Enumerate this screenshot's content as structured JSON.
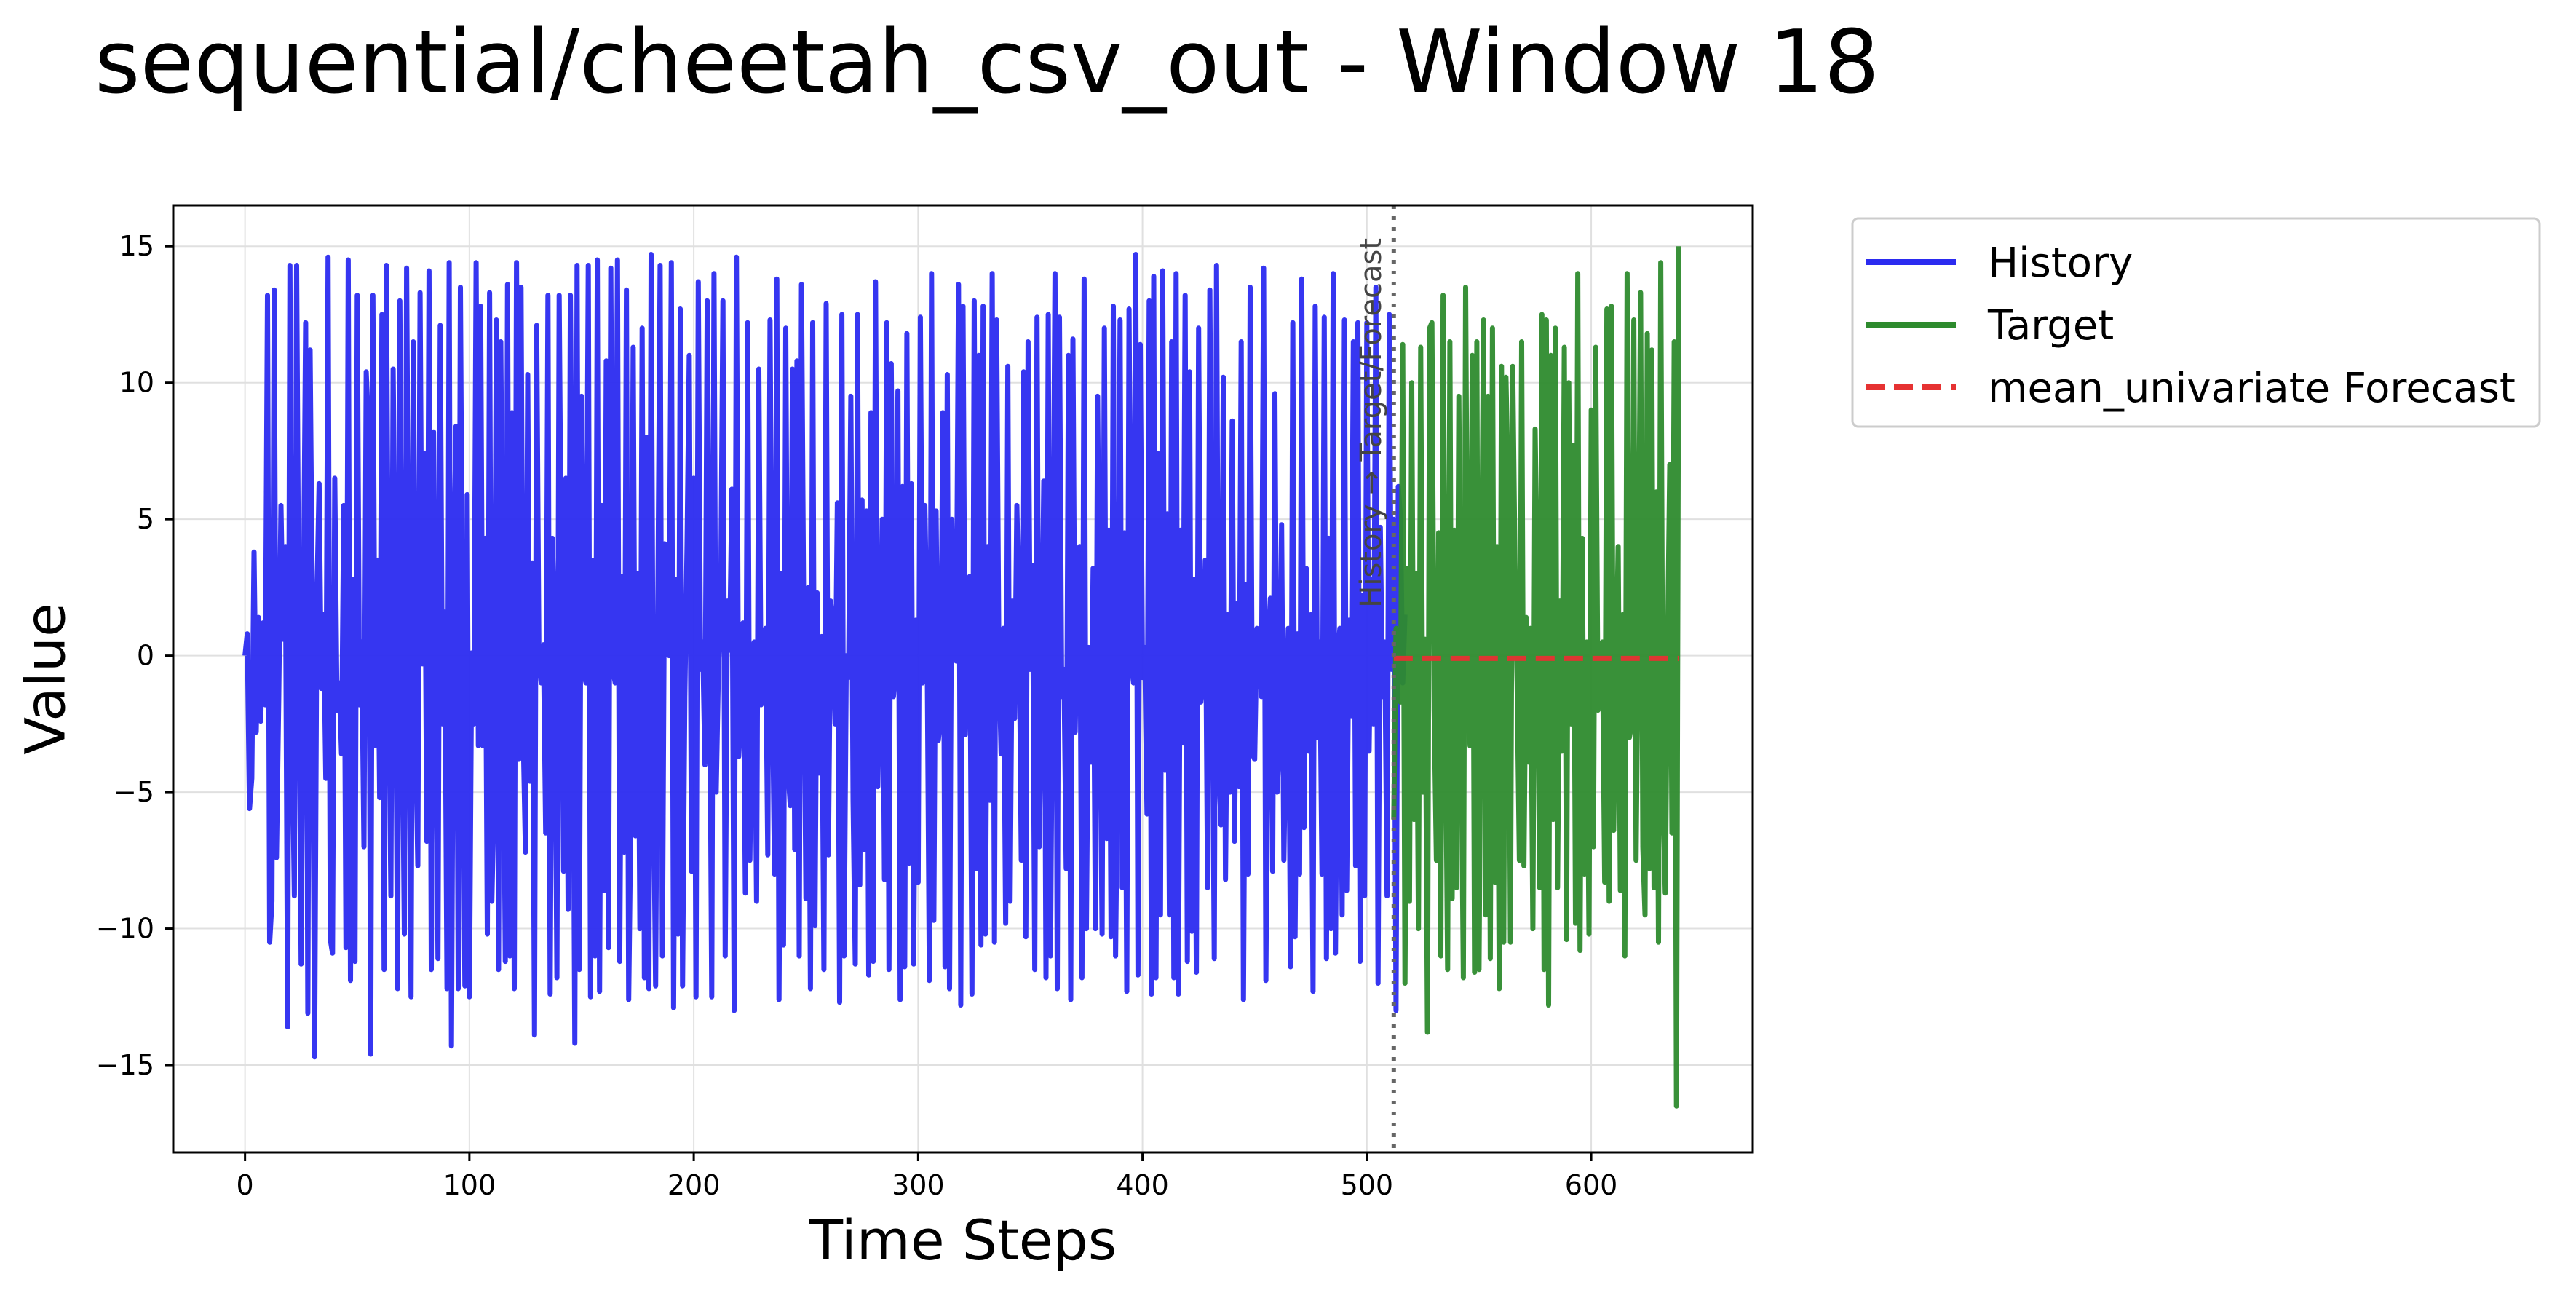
{
  "chart_data": {
    "type": "line",
    "title": "sequential/cheetah_csv_out - Window 18",
    "xlabel": "Time Steps",
    "ylabel": "Value",
    "xlim": [
      -32,
      672
    ],
    "ylim": [
      -18.2,
      16.5
    ],
    "xticks": [
      0,
      100,
      200,
      300,
      400,
      500,
      600
    ],
    "yticks": [
      -15,
      -10,
      -5,
      0,
      5,
      10,
      15
    ],
    "grid": true,
    "legend_position": "outside-top-right",
    "split_x": 512,
    "split_annotation": "History → Target/Forecast",
    "series": [
      {
        "name": "History",
        "color": "#2b2bf0",
        "style": "solid",
        "x_start": 0,
        "x_step": 1,
        "values": [
          0.0,
          0.8,
          -5.6,
          -4.5,
          3.8,
          -2.8,
          1.4,
          -2.4,
          1.2,
          -1.8,
          13.2,
          -10.5,
          -9.0,
          13.4,
          -7.4,
          -1.6,
          5.5,
          0.6,
          4.0,
          -13.6,
          14.3,
          -3.0,
          -8.8,
          14.3,
          0.8,
          -11.3,
          1.5,
          12.2,
          -13.1,
          11.2,
          1.7,
          -14.7,
          2.0,
          6.3,
          -1.2,
          1.5,
          -4.5,
          14.6,
          -10.4,
          -10.9,
          6.5,
          -2.0,
          -1.0,
          -3.6,
          5.5,
          -10.7,
          14.5,
          -11.9,
          2.8,
          -11.2,
          13.2,
          -1.8,
          0.5,
          -7.0,
          10.4,
          8.4,
          -14.6,
          13.2,
          -3.3,
          3.5,
          -5.2,
          12.5,
          -11.5,
          14.3,
          -0.3,
          -8.8,
          10.5,
          2.0,
          -12.2,
          13.0,
          -1.2,
          -10.2,
          14.2,
          0.4,
          -12.5,
          11.5,
          -2.5,
          -7.7,
          13.3,
          -0.3,
          7.4,
          -6.8,
          14.1,
          -11.5,
          8.2,
          -0.2,
          -11.1,
          12.1,
          -2.5,
          1.6,
          -12.2,
          14.4,
          -14.3,
          3.0,
          8.4,
          -12.2,
          13.5,
          -0.8,
          -12.1,
          5.9,
          -12.5,
          0.1,
          -2.5,
          14.4,
          -3.3,
          12.8,
          -3.3,
          4.3,
          -10.2,
          13.3,
          -9.0,
          -4.9,
          12.3,
          -11.5,
          11.5,
          0.0,
          -11.2,
          13.6,
          -11.0,
          8.9,
          -12.2,
          14.4,
          -3.8,
          13.5,
          -3.0,
          -7.2,
          10.3,
          -4.6,
          3.4,
          -13.9,
          12.1,
          -0.1,
          -1.0,
          0.4,
          -6.5,
          13.2,
          -12.4,
          4.3,
          0.6,
          -11.8,
          13.2,
          2.0,
          -7.9,
          6.5,
          -9.3,
          13.2,
          1.7,
          -14.2,
          14.3,
          -11.5,
          9.5,
          -0.7,
          -1.0,
          14.3,
          -12.5,
          3.5,
          -11.0,
          14.5,
          -12.3,
          5.5,
          -8.6,
          10.8,
          -10.7,
          14.2,
          -0.5,
          -1.0,
          14.5,
          -11.2,
          2.9,
          -7.2,
          13.4,
          -12.6,
          -5.4,
          11.3,
          -6.6,
          3.0,
          -10.0,
          12.0,
          -11.8,
          8.0,
          -12.2,
          14.7,
          -4.0,
          -12.1,
          2.0,
          14.3,
          -11.0,
          4.1,
          0.1,
          0.0,
          14.4,
          -12.9,
          2.8,
          -10.2,
          12.7,
          -12.1,
          -1.5,
          4.0,
          11.0,
          -7.9,
          6.5,
          -12.5,
          13.7,
          -0.5,
          0.5,
          -4.0,
          13.0,
          1.4,
          -12.5,
          14.0,
          -5.0,
          -0.5,
          1.9,
          13.0,
          -11.0,
          2.0,
          0.2,
          6.1,
          -13.0,
          14.6,
          -3.7,
          -1.8,
          1.2,
          -8.7,
          12.2,
          -7.5,
          0.3,
          0.5,
          -9.0,
          10.5,
          -1.8,
          -0.8,
          1.0,
          -7.3,
          12.3,
          -1.0,
          -8.0,
          13.8,
          -12.6,
          3.0,
          -10.6,
          12.0,
          -4.2,
          -5.5,
          10.5,
          -7.1,
          10.8,
          -11.0,
          13.6,
          1.2,
          -8.9,
          2.5,
          -12.2,
          12.2,
          -9.9,
          2.3,
          -4.3,
          0.7,
          -11.5,
          12.9,
          -7.3,
          2.0,
          1.2,
          -2.5,
          5.6,
          -12.7,
          12.5,
          -11.0,
          0.0,
          -0.8,
          9.5,
          -5.3,
          -11.3,
          12.5,
          -8.4,
          5.7,
          -7.1,
          5.3,
          -11.7,
          8.9,
          -11.2,
          13.7,
          -4.8,
          -0.8,
          5.0,
          -8.2,
          12.2,
          -11.5,
          10.7,
          -1.5,
          -0.5,
          9.7,
          -12.6,
          6.2,
          -11.4,
          11.8,
          -7.6,
          6.3,
          -11.3,
          1.3,
          -8.3,
          12.4,
          -1.0,
          5.5,
          0.5,
          -11.9,
          14.0,
          -9.7,
          5.3,
          -3.1,
          -2.3,
          8.9,
          -11.4,
          10.3,
          -12.2,
          5.0,
          0.4,
          -0.2,
          13.6,
          -12.8,
          12.8,
          -2.9,
          0.0,
          2.9,
          -12.4,
          13.0,
          -7.8,
          11.0,
          -10.6,
          12.8,
          -10.2,
          4.0,
          -5.3,
          14.0,
          -10.5,
          12.3,
          -0.2,
          -3.6,
          1.0,
          -9.8,
          10.6,
          -9.0,
          2.0,
          -2.3,
          5.5,
          1.2,
          -7.5,
          10.4,
          -10.3,
          11.5,
          -0.5,
          3.3,
          -11.5,
          12.4,
          -7.0,
          -0.9,
          6.4,
          -11.8,
          12.5,
          -11.0,
          1.0,
          14.0,
          -12.2,
          12.4,
          -1.5,
          -0.5,
          -7.8,
          11.0,
          -12.6,
          11.6,
          -2.8,
          1.8,
          4.0,
          -11.8,
          13.8,
          -10.0,
          0.3,
          -3.9,
          3.2,
          -10.0,
          9.5,
          -0.8,
          -10.2,
          12.0,
          -6.7,
          4.6,
          -10.3,
          12.8,
          -11.0,
          -3.0,
          12.3,
          -8.5,
          4.5,
          -12.3,
          12.7,
          -0.3,
          -1.0,
          14.7,
          -11.7,
          11.4,
          -0.8,
          0.3,
          -5.8,
          13.0,
          -12.4,
          13.9,
          -11.8,
          7.4,
          -9.5,
          14.1,
          -4.2,
          5.2,
          -9.5,
          11.5,
          -11.8,
          14.0,
          -12.4,
          4.6,
          -3.2,
          13.2,
          -11.2,
          10.4,
          -10.1,
          2.8,
          -11.6,
          12.0,
          -1.7,
          -0.9,
          3.5,
          -8.5,
          13.4,
          1.3,
          -11.1,
          14.3,
          -4.1,
          -6.2,
          10.2,
          -8.2,
          1.5,
          -5.0,
          8.6,
          -6.8,
          1.9,
          -4.8,
          11.5,
          -12.6,
          2.6,
          -8.0,
          13.5,
          -3.6,
          -3.8,
          1.0,
          0.0,
          -1.5,
          14.2,
          -11.9,
          0.4,
          2.1,
          -7.9,
          9.6,
          -5.0,
          -3.3,
          4.8,
          -7.5,
          -2.0,
          1.0,
          -11.4,
          12.2,
          -10.3,
          0.8,
          -8.0,
          13.8,
          -6.3,
          3.2,
          -3.5,
          1.5,
          -12.3,
          12.8,
          -3.0,
          0.5,
          -8.0,
          12.4,
          -11.1,
          4.3,
          -10.0,
          14.0,
          -10.9,
          0.0,
          1.0,
          -9.5,
          12.3,
          -8.6,
          1.3,
          -2.2,
          11.5,
          -7.7,
          12.2,
          -11.2,
          2.2,
          -8.8,
          12.2,
          -3.5,
          2.8,
          -2.5,
          13.5,
          -12.0,
          4.7,
          -1.5,
          0.5,
          -8.8,
          12.5,
          -0.5,
          5.0,
          -13.0,
          6.2,
          5.0,
          -1.0,
          1.5
        ]
      },
      {
        "name": "Target",
        "color": "#2e8b2e",
        "style": "solid",
        "x_start": 512,
        "x_step": 1,
        "values": [
          -6.0,
          1.0,
          0.7,
          -1.7,
          11.4,
          -12.0,
          3.2,
          -9.0,
          10.0,
          -6.0,
          3.0,
          -10.0,
          11.3,
          -5.0,
          0.6,
          -13.8,
          12.0,
          12.2,
          -2.0,
          -7.5,
          4.5,
          -11.0,
          13.2,
          -1.5,
          -11.5,
          11.5,
          -8.9,
          4.6,
          -8.5,
          9.5,
          -2.5,
          -11.8,
          13.5,
          -0.5,
          -3.3,
          11.0,
          -11.6,
          11.5,
          -11.5,
          0.7,
          12.3,
          -9.5,
          9.5,
          -11.1,
          12.0,
          -8.3,
          4.0,
          -12.2,
          10.6,
          -10.5,
          10.2,
          6.1,
          -10.5,
          10.6,
          3.4,
          -1.0,
          -7.5,
          11.5,
          -7.7,
          1.4,
          -3.9,
          1.0,
          -10.0,
          8.3,
          2.0,
          -8.5,
          12.5,
          -11.5,
          12.3,
          -12.8,
          11.0,
          -6.0,
          12.0,
          -8.5,
          2.0,
          -3.5,
          11.3,
          -10.4,
          10.0,
          -2.5,
          7.7,
          -9.8,
          14.0,
          -10.8,
          4.3,
          -8.0,
          0.5,
          -10.2,
          9.0,
          -7.0,
          11.3,
          -2.0,
          0.2,
          0.5,
          -8.3,
          12.7,
          -9.0,
          12.8,
          -6.4,
          -1.0,
          4.0,
          -8.6,
          1.5,
          -11.0,
          14.0,
          -3.0,
          -2.5,
          12.3,
          -7.5,
          1.5,
          13.3,
          -7.0,
          -9.5,
          11.8,
          -7.8,
          11.2,
          -8.5,
          6.0,
          -10.5,
          14.4,
          -5.0,
          -8.7,
          0.1,
          7.0,
          -6.5,
          11.5,
          -16.5,
          15.0
        ]
      },
      {
        "name": "mean_univariate Forecast",
        "color": "#e63232",
        "style": "dashed",
        "x_start": 512,
        "x_step": 1,
        "values": [
          -0.1,
          -0.1,
          -0.1,
          -0.1,
          -0.1,
          -0.1,
          -0.1,
          -0.1,
          -0.1,
          -0.1,
          -0.1,
          -0.1,
          -0.1,
          -0.1,
          -0.1,
          -0.1,
          -0.1,
          -0.1,
          -0.1,
          -0.1,
          -0.1,
          -0.1,
          -0.1,
          -0.1,
          -0.1,
          -0.1,
          -0.1,
          -0.1,
          -0.1,
          -0.1,
          -0.1,
          -0.1,
          -0.1,
          -0.1,
          -0.1,
          -0.1,
          -0.1,
          -0.1,
          -0.1,
          -0.1,
          -0.1,
          -0.1,
          -0.1,
          -0.1,
          -0.1,
          -0.1,
          -0.1,
          -0.1,
          -0.1,
          -0.1,
          -0.1,
          -0.1,
          -0.1,
          -0.1,
          -0.1,
          -0.1,
          -0.1,
          -0.1,
          -0.1,
          -0.1,
          -0.1,
          -0.1,
          -0.1,
          -0.1,
          -0.1,
          -0.1,
          -0.1,
          -0.1,
          -0.1,
          -0.1,
          -0.1,
          -0.1,
          -0.1,
          -0.1,
          -0.1,
          -0.1,
          -0.1,
          -0.1,
          -0.1,
          -0.1,
          -0.1,
          -0.1,
          -0.1,
          -0.1,
          -0.1,
          -0.1,
          -0.1,
          -0.1,
          -0.1,
          -0.1,
          -0.1,
          -0.1,
          -0.1,
          -0.1,
          -0.1,
          -0.1,
          -0.1,
          -0.1,
          -0.1,
          -0.1,
          -0.1,
          -0.1,
          -0.1,
          -0.1,
          -0.1,
          -0.1,
          -0.1,
          -0.1,
          -0.1,
          -0.1,
          -0.1,
          -0.1,
          -0.1,
          -0.1,
          -0.1,
          -0.1,
          -0.1,
          -0.1,
          -0.1,
          -0.1,
          -0.1,
          -0.1,
          -0.1,
          -0.1,
          -0.1,
          -0.1,
          -0.1,
          -0.1
        ]
      }
    ]
  }
}
